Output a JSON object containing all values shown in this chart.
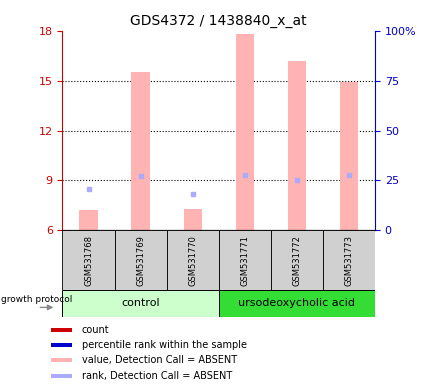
{
  "title": "GDS4372 / 1438840_x_at",
  "samples": [
    "GSM531768",
    "GSM531769",
    "GSM531770",
    "GSM531771",
    "GSM531772",
    "GSM531773"
  ],
  "ylim_left": [
    6,
    18
  ],
  "ylim_right": [
    0,
    100
  ],
  "yticks_left": [
    6,
    9,
    12,
    15,
    18
  ],
  "yticks_right": [
    0,
    25,
    50,
    75,
    100
  ],
  "yticklabels_right": [
    "0",
    "25",
    "50",
    "75",
    "100%"
  ],
  "bar_values": [
    7.2,
    15.5,
    7.3,
    17.8,
    16.2,
    14.9
  ],
  "bar_color_absent": "#ffb3b3",
  "rank_values": [
    8.5,
    9.25,
    8.2,
    9.35,
    9.0,
    9.3
  ],
  "rank_color_absent": "#aaaaff",
  "legend_items": [
    {
      "label": "count",
      "color": "#cc0000"
    },
    {
      "label": "percentile rank within the sample",
      "color": "#0000cc"
    },
    {
      "label": "value, Detection Call = ABSENT",
      "color": "#ffb3b3"
    },
    {
      "label": "rank, Detection Call = ABSENT",
      "color": "#aaaaff"
    }
  ],
  "xlabel_group": "growth protocol",
  "background_color": "#ffffff",
  "plot_bg": "#ffffff",
  "left_axis_color": "#cc0000",
  "right_axis_color": "#0000cc",
  "bar_width": 0.35,
  "sample_box_color": "#d0d0d0",
  "control_color": "#ccffcc",
  "ursodeo_color": "#33dd33",
  "grid_ticks": [
    9,
    12,
    15
  ]
}
